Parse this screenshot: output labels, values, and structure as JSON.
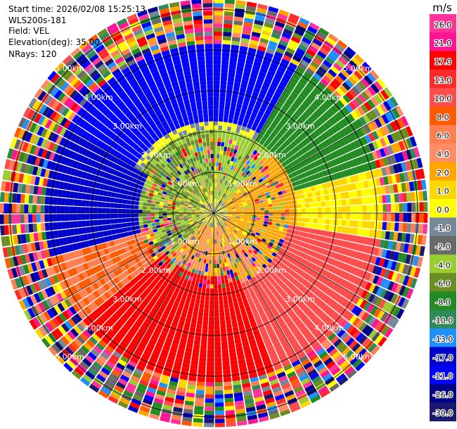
{
  "header": {
    "start_time": "Start time: 2026/02/08 15:25:13",
    "instrument": "WLS200s-181",
    "field": "Field: VEL",
    "elevation": "Elevation(deg): 35.00",
    "nrays": "NRays: 120"
  },
  "chart_data": {
    "type": "heatmap",
    "subtype": "radar-ppi",
    "field": "VEL",
    "units": "m/s",
    "n_rays": 120,
    "elevation_deg": 35.0,
    "ring_labels": [
      "1.00km",
      "2.00km",
      "3.00km",
      "4.00km",
      "5.00km"
    ],
    "ring_values_km": [
      1,
      2,
      3,
      4,
      5
    ],
    "max_range_km": 5.2,
    "colorbar": {
      "label": "m/s",
      "ticks": [
        "26.0",
        "21.0",
        "17.0",
        "13.0",
        "10.0",
        "8.0",
        "6.0",
        "4.0",
        "2.0",
        "1.0",
        "0.0",
        "-1.0",
        "-2.0",
        "-4.0",
        "-6.0",
        "-8.0",
        "-10.0",
        "-13.0",
        "-17.0",
        "-21.0",
        "-26.0",
        "-30.0"
      ],
      "colors": [
        "#ff3399",
        "#ff1493",
        "#ff0000",
        "#ff2a2a",
        "#ff4d4d",
        "#ff5a00",
        "#ff7f50",
        "#ff8c66",
        "#ffa500",
        "#ffd700",
        "#ffff00",
        "#778899",
        "#696969",
        "#9acd32",
        "#6b8e23",
        "#228b22",
        "#2e8b57",
        "#1e90ff",
        "#0000cd",
        "#0000ff",
        "#00008b",
        "#191970"
      ]
    },
    "regions": [
      {
        "az": [
          300,
          360
        ],
        "r": [
          2.2,
          5.2
        ],
        "v": -20
      },
      {
        "az": [
          0,
          30
        ],
        "r": [
          2.2,
          5.2
        ],
        "v": -18
      },
      {
        "az": [
          30,
          75
        ],
        "r": [
          2.0,
          5.0
        ],
        "v": -7
      },
      {
        "az": [
          75,
          100
        ],
        "r": [
          2.0,
          5.0
        ],
        "v": 1
      },
      {
        "az": [
          100,
          160
        ],
        "r": [
          1.8,
          5.0
        ],
        "v": 11
      },
      {
        "az": [
          160,
          230
        ],
        "r": [
          1.5,
          5.0
        ],
        "v": 19
      },
      {
        "az": [
          230,
          255
        ],
        "r": [
          1.5,
          5.0
        ],
        "v": 8
      },
      {
        "az": [
          255,
          300
        ],
        "r": [
          1.8,
          4.5
        ],
        "v": -14
      },
      {
        "az": [
          45,
          135
        ],
        "r": [
          0.3,
          2.0
        ],
        "v": 3
      },
      {
        "az": [
          135,
          225
        ],
        "r": [
          0.3,
          1.8
        ],
        "v": 4
      },
      {
        "az": [
          225,
          360
        ],
        "r": [
          0.3,
          2.0
        ],
        "v": -4
      },
      {
        "az": [
          0,
          45
        ],
        "r": [
          0.3,
          2.0
        ],
        "v": -3
      }
    ]
  }
}
